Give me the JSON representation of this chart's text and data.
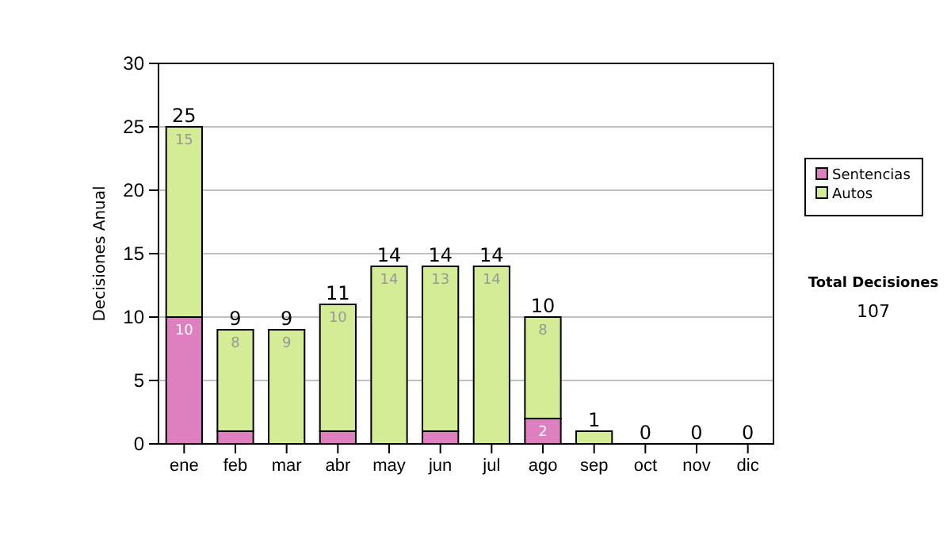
{
  "chart_data": {
    "type": "bar",
    "stacked": true,
    "ylabel": "Decisiones Anual",
    "categories": [
      "ene",
      "feb",
      "mar",
      "abr",
      "may",
      "jun",
      "jul",
      "ago",
      "sep",
      "oct",
      "nov",
      "dic"
    ],
    "series": [
      {
        "name": "Sentencias",
        "color": "#de80c0",
        "values": [
          10,
          1,
          0,
          1,
          0,
          1,
          0,
          2,
          0,
          0,
          0,
          0
        ],
        "value_labels": [
          "10",
          null,
          null,
          null,
          null,
          null,
          null,
          "2",
          null,
          null,
          null,
          null
        ]
      },
      {
        "name": "Autos",
        "color": "#d4ec96",
        "values": [
          15,
          8,
          9,
          10,
          14,
          13,
          14,
          8,
          1,
          0,
          0,
          0
        ],
        "value_labels": [
          "15",
          "8",
          "9",
          "10",
          "14",
          "13",
          "14",
          "8",
          null,
          null,
          null,
          null
        ]
      }
    ],
    "totals": [
      "25",
      "9",
      "9",
      "11",
      "14",
      "14",
      "14",
      "10",
      "1",
      "0",
      "0",
      "0"
    ],
    "ylim": [
      0,
      30
    ],
    "yticks": [
      0,
      5,
      10,
      15,
      20,
      25,
      30
    ],
    "grid": "y",
    "legend": "right",
    "annotations": [
      "Total Decisiones",
      "107"
    ]
  }
}
